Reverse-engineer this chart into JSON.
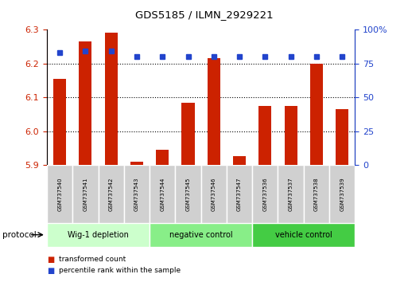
{
  "title": "GDS5185 / ILMN_2929221",
  "samples": [
    "GSM737540",
    "GSM737541",
    "GSM737542",
    "GSM737543",
    "GSM737544",
    "GSM737545",
    "GSM737546",
    "GSM737547",
    "GSM737536",
    "GSM737537",
    "GSM737538",
    "GSM737539"
  ],
  "red_values": [
    6.155,
    6.265,
    6.29,
    5.91,
    5.945,
    6.085,
    6.215,
    5.925,
    6.075,
    6.075,
    6.2,
    6.065
  ],
  "blue_values": [
    83,
    84,
    84,
    80,
    80,
    80,
    80,
    80,
    80,
    80,
    80,
    80
  ],
  "ylim_left": [
    5.9,
    6.3
  ],
  "ylim_right": [
    0,
    100
  ],
  "yticks_left": [
    5.9,
    6.0,
    6.1,
    6.2,
    6.3
  ],
  "yticks_right": [
    0,
    25,
    50,
    75,
    100
  ],
  "groups": [
    {
      "label": "Wig-1 depletion",
      "start": 0,
      "end": 4,
      "color": "#ccffcc"
    },
    {
      "label": "negative control",
      "start": 4,
      "end": 8,
      "color": "#88ee88"
    },
    {
      "label": "vehicle control",
      "start": 8,
      "end": 12,
      "color": "#44cc44"
    }
  ],
  "red_color": "#cc2200",
  "blue_color": "#2244cc",
  "bar_width": 0.5,
  "protocol_label": "protocol",
  "legend_red": "transformed count",
  "legend_blue": "percentile rank within the sample",
  "grid_lines": [
    6.0,
    6.1,
    6.2
  ]
}
